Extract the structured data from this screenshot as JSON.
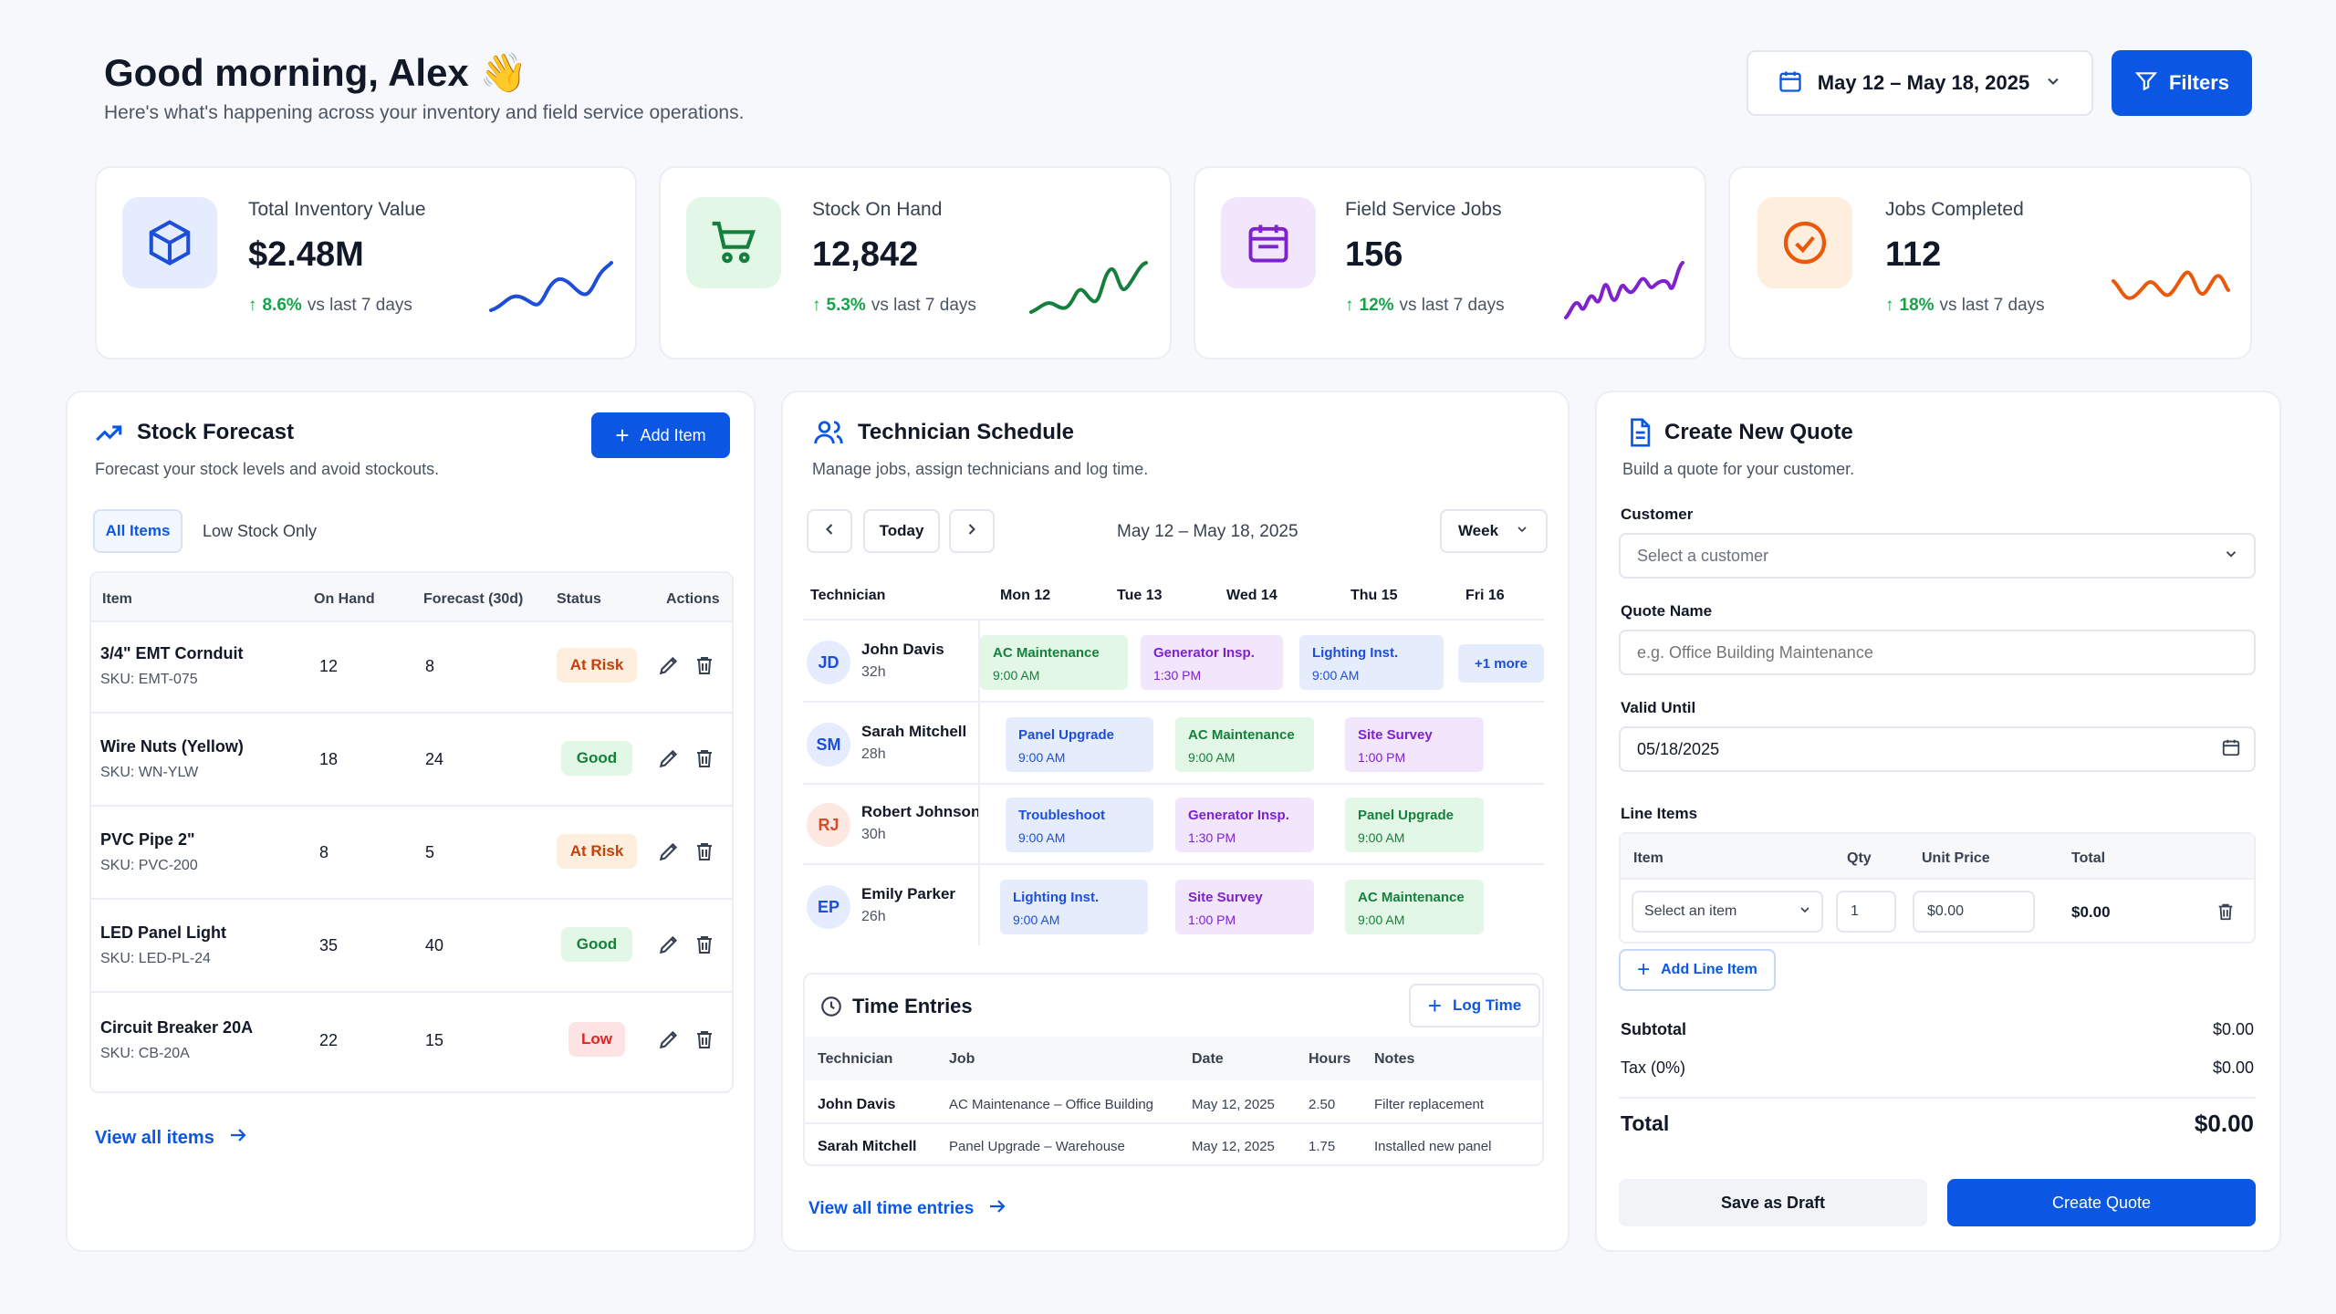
{
  "header": {
    "greeting": "Good morning, Alex 👋",
    "subtitle": "Here's what's happening across your inventory and field service operations.",
    "date_range": "May 12 – May 18, 2025",
    "filters_label": "Filters"
  },
  "stats": [
    {
      "title": "Total Inventory Value",
      "value": "$2.48M",
      "delta": "8.6%",
      "delta_suffix": "vs last 7 days",
      "color": "#1d4ed8"
    },
    {
      "title": "Stock On Hand",
      "value": "12,842",
      "delta": "5.3%",
      "delta_suffix": "vs last 7 days",
      "color": "#15803d"
    },
    {
      "title": "Field Service Jobs",
      "value": "156",
      "delta": "12%",
      "delta_suffix": "vs last 7 days",
      "color": "#7e22ce"
    },
    {
      "title": "Jobs Completed",
      "value": "112",
      "delta": "18%",
      "delta_suffix": "vs last 7 days",
      "color": "#ea580c"
    }
  ],
  "stock": {
    "title": "Stock Forecast",
    "subtitle": "Forecast your stock levels and avoid stockouts.",
    "add_label": "Add Item",
    "tabs": [
      "All Items",
      "Low Stock Only"
    ],
    "columns": [
      "Item",
      "On Hand",
      "Forecast (30d)",
      "Status",
      "Actions"
    ],
    "rows": [
      {
        "name": "3/4\" EMT Cornduit",
        "sku": "SKU: EMT-075",
        "on_hand": "12",
        "forecast": "8",
        "status": "At Risk"
      },
      {
        "name": "Wire Nuts (Yellow)",
        "sku": "SKU: WN-YLW",
        "on_hand": "18",
        "forecast": "24",
        "status": "Good"
      },
      {
        "name": "PVC Pipe 2\"",
        "sku": "SKU: PVC-200",
        "on_hand": "8",
        "forecast": "5",
        "status": "At Risk"
      },
      {
        "name": "LED Panel Light",
        "sku": "SKU: LED-PL-24",
        "on_hand": "35",
        "forecast": "40",
        "status": "Good"
      },
      {
        "name": "Circuit Breaker 20A",
        "sku": "SKU: CB-20A",
        "on_hand": "22",
        "forecast": "15",
        "status": "Low"
      }
    ],
    "view_all": "View all items"
  },
  "schedule": {
    "title": "Technician Schedule",
    "subtitle": "Manage jobs, assign technicians and log time.",
    "today": "Today",
    "range": "May 12 – May 18, 2025",
    "view": "Week",
    "columns": [
      "Technician",
      "Mon 12",
      "Tue 13",
      "Wed 14",
      "Thu 15",
      "Fri 16"
    ],
    "techs": [
      {
        "initials": "JD",
        "name": "John Davis",
        "hours": "32h"
      },
      {
        "initials": "SM",
        "name": "Sarah Mitchell",
        "hours": "28h"
      },
      {
        "initials": "RJ",
        "name": "Robert Johnson",
        "hours": "30h"
      },
      {
        "initials": "EP",
        "name": "Emily Parker",
        "hours": "26h"
      }
    ],
    "jobs": [
      {
        "name": "AC Maintenance",
        "time": "9:00 AM"
      },
      {
        "name": "Generator Insp.",
        "time": "1:30 PM"
      },
      {
        "name": "Lighting Inst.",
        "time": "9:00 AM"
      },
      {
        "name": "Panel Upgrade",
        "time": "9:00 AM"
      },
      {
        "name": "AC Maintenance",
        "time": "9:00 AM"
      },
      {
        "name": "Site Survey",
        "time": "1:00 PM"
      },
      {
        "name": "Troubleshoot",
        "time": "9:00 AM"
      },
      {
        "name": "Generator Insp.",
        "time": "1:30 PM"
      },
      {
        "name": "Panel Upgrade",
        "time": "9:00 AM"
      },
      {
        "name": "Lighting Inst.",
        "time": "9:00 AM"
      },
      {
        "name": "Site Survey",
        "time": "1:00 PM"
      },
      {
        "name": "AC Maintenance",
        "time": "9:00 AM"
      }
    ],
    "more": "+1 more",
    "time_entries": {
      "title": "Time Entries",
      "log_label": "Log Time",
      "columns": [
        "Technician",
        "Job",
        "Date",
        "Hours",
        "Notes"
      ],
      "rows": [
        {
          "tech": "John Davis",
          "job": "AC Maintenance – Office Building",
          "date": "May 12, 2025",
          "hours": "2.50",
          "notes": "Filter replacement"
        },
        {
          "tech": "Sarah Mitchell",
          "job": "Panel Upgrade – Warehouse",
          "date": "May 12, 2025",
          "hours": "1.75",
          "notes": "Installed new panel"
        }
      ]
    },
    "view_all": "View all time entries"
  },
  "quote": {
    "title": "Create New Quote",
    "subtitle": "Build a quote for your customer.",
    "customer_label": "Customer",
    "customer_placeholder": "Select a customer",
    "name_label": "Quote Name",
    "name_placeholder": "e.g. Office Building Maintenance",
    "valid_label": "Valid Until",
    "valid_value": "05/18/2025",
    "line_items_label": "Line Items",
    "columns": [
      "Item",
      "Qty",
      "Unit Price",
      "Total"
    ],
    "item_placeholder": "Select an item",
    "qty": "1",
    "unit_price": "$0.00",
    "line_total": "$0.00",
    "add_line": "Add Line Item",
    "subtotal_label": "Subtotal",
    "subtotal": "$0.00",
    "tax_label": "Tax (0%)",
    "tax": "$0.00",
    "total_label": "Total",
    "total": "$0.00",
    "draft_label": "Save as Draft",
    "create_label": "Create Quote"
  }
}
